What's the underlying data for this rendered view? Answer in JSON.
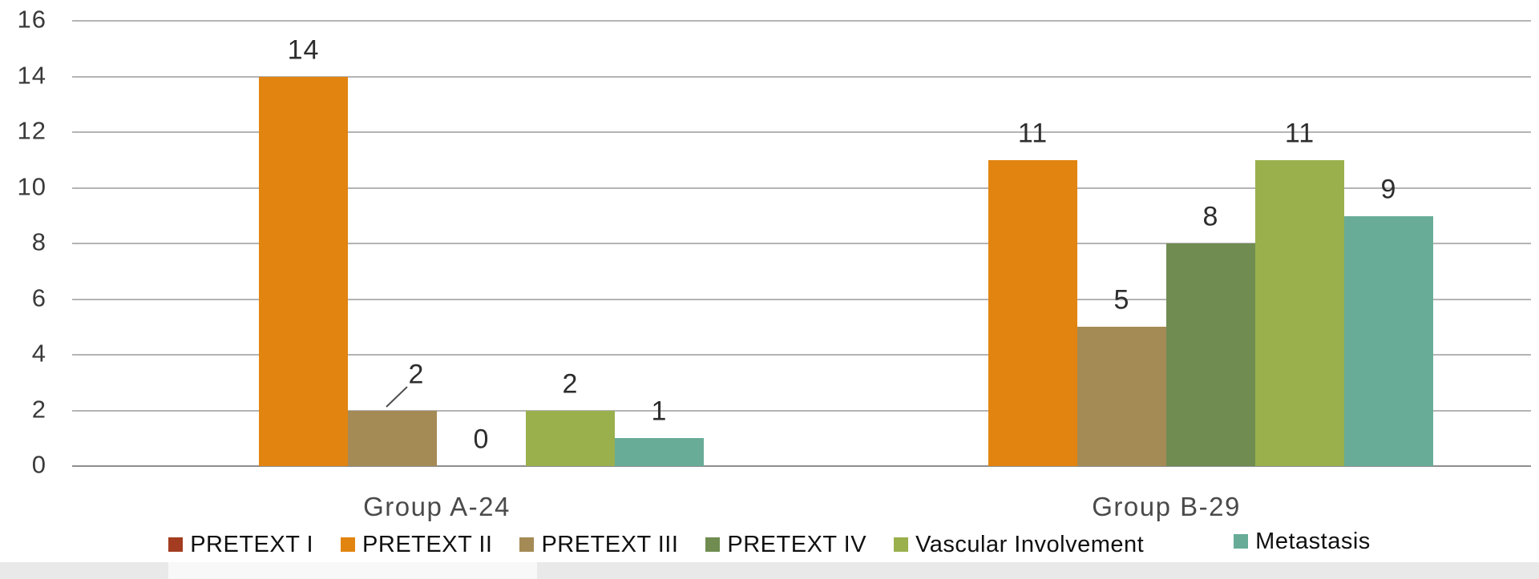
{
  "chart_data": {
    "type": "bar",
    "title": "",
    "xlabel": "",
    "ylabel": "",
    "categories": [
      "Group A-24",
      "Group B-29"
    ],
    "series": [
      {
        "name": "PRETEXT I",
        "color": "#A33C20",
        "values": [
          0,
          0
        ]
      },
      {
        "name": "PRETEXT II",
        "color": "#E28410",
        "values": [
          14,
          11
        ]
      },
      {
        "name": "PRETEXT III",
        "color": "#A48A55",
        "values": [
          2,
          5
        ]
      },
      {
        "name": "PRETEXT IV",
        "color": "#708C51",
        "values": [
          0,
          8
        ]
      },
      {
        "name": "Vascular Involvement",
        "color": "#9AB04D",
        "values": [
          2,
          11
        ]
      },
      {
        "name": "Metastasis",
        "color": "#68AC98",
        "values": [
          1,
          9
        ]
      }
    ],
    "data_labels": [
      [
        "",
        "14",
        "2",
        "0",
        "2",
        "1"
      ],
      [
        "",
        "11",
        "5",
        "8",
        "11",
        "9"
      ]
    ],
    "callout": {
      "category": 0,
      "series_index": 2,
      "dx": 30,
      "dy": -12
    },
    "yticks": [
      0,
      2,
      4,
      6,
      8,
      10,
      12,
      14,
      16
    ],
    "ylim": [
      0,
      16
    ],
    "grid": true,
    "legend_position": "bottom"
  }
}
